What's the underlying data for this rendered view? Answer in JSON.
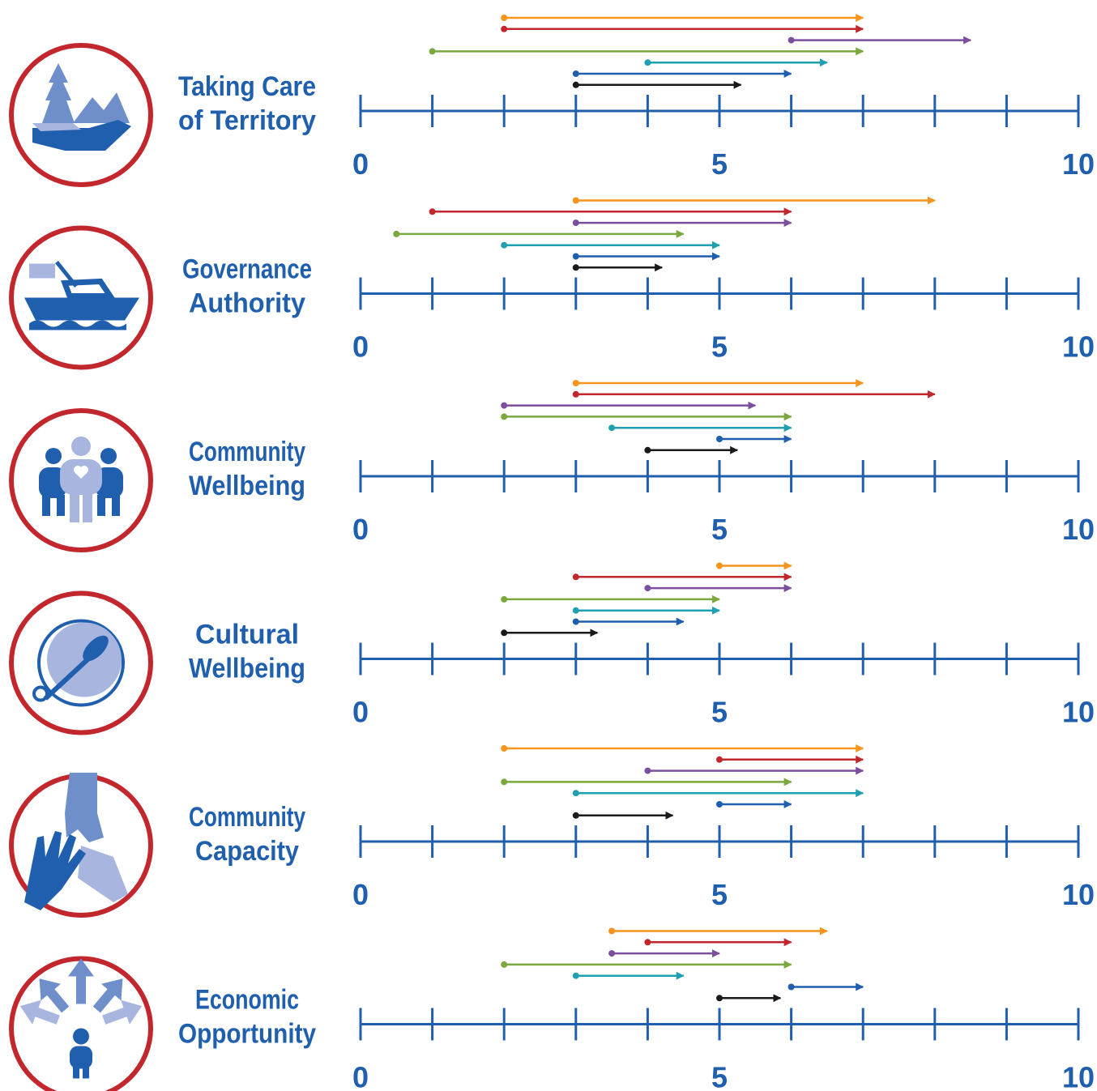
{
  "series_colors": {
    "orange": "#f7941d",
    "red": "#c1272d",
    "purple": "#7b4f9d",
    "green": "#7aa83f",
    "teal": "#1fa0b0",
    "blue": "#1f5fad",
    "black": "#1a1a1a"
  },
  "axis_color": "#1f5fad",
  "icon_ring_color": "#c1272d",
  "chart_data": [
    {
      "type": "range",
      "label_lines": [
        "Taking Care",
        "of Territory"
      ],
      "icon": "hands-holding-land-icon",
      "xlim": [
        0,
        10
      ],
      "tick_labels": [
        "0",
        "5",
        "10"
      ],
      "tick_label_values": [
        0,
        5,
        10
      ],
      "ranges": [
        {
          "color": "orange",
          "start": 2,
          "end": 7
        },
        {
          "color": "red",
          "start": 2,
          "end": 7
        },
        {
          "color": "purple",
          "start": 6,
          "end": 8.5
        },
        {
          "color": "green",
          "start": 1,
          "end": 7
        },
        {
          "color": "teal",
          "start": 4,
          "end": 6.5
        },
        {
          "color": "blue",
          "start": 3,
          "end": 6
        },
        {
          "color": "black",
          "start": 3,
          "end": 5.3
        }
      ]
    },
    {
      "type": "range",
      "label_lines": [
        "Governance",
        "Authority"
      ],
      "icon": "boat-with-flag-icon",
      "xlim": [
        0,
        10
      ],
      "tick_labels": [
        "0",
        "5",
        "10"
      ],
      "tick_label_values": [
        0,
        5,
        10
      ],
      "ranges": [
        {
          "color": "orange",
          "start": 3,
          "end": 8
        },
        {
          "color": "red",
          "start": 1,
          "end": 6
        },
        {
          "color": "purple",
          "start": 3,
          "end": 6
        },
        {
          "color": "green",
          "start": 0.5,
          "end": 4.5
        },
        {
          "color": "teal",
          "start": 2,
          "end": 5
        },
        {
          "color": "blue",
          "start": 3,
          "end": 5
        },
        {
          "color": "black",
          "start": 3,
          "end": 4.2
        }
      ]
    },
    {
      "type": "range",
      "label_lines": [
        "Community",
        "Wellbeing"
      ],
      "icon": "family-heart-icon",
      "xlim": [
        0,
        10
      ],
      "tick_labels": [
        "0",
        "5",
        "10"
      ],
      "tick_label_values": [
        0,
        5,
        10
      ],
      "ranges": [
        {
          "color": "orange",
          "start": 3,
          "end": 7
        },
        {
          "color": "red",
          "start": 3,
          "end": 8
        },
        {
          "color": "purple",
          "start": 2,
          "end": 5.5
        },
        {
          "color": "green",
          "start": 2,
          "end": 6
        },
        {
          "color": "teal",
          "start": 3.5,
          "end": 6
        },
        {
          "color": "blue",
          "start": 5,
          "end": 6
        },
        {
          "color": "black",
          "start": 4,
          "end": 5.25
        }
      ]
    },
    {
      "type": "range",
      "label_lines": [
        "Cultural",
        "Wellbeing"
      ],
      "icon": "drum-icon",
      "xlim": [
        0,
        10
      ],
      "tick_labels": [
        "0",
        "5",
        "10"
      ],
      "tick_label_values": [
        0,
        5,
        10
      ],
      "ranges": [
        {
          "color": "orange",
          "start": 5,
          "end": 6
        },
        {
          "color": "red",
          "start": 3,
          "end": 6
        },
        {
          "color": "purple",
          "start": 4,
          "end": 6
        },
        {
          "color": "green",
          "start": 2,
          "end": 5
        },
        {
          "color": "teal",
          "start": 3,
          "end": 5
        },
        {
          "color": "blue",
          "start": 3,
          "end": 4.5
        },
        {
          "color": "black",
          "start": 2,
          "end": 3.3
        }
      ]
    },
    {
      "type": "range",
      "label_lines": [
        "Community",
        "Capacity"
      ],
      "icon": "helping-hands-icon",
      "xlim": [
        0,
        10
      ],
      "tick_labels": [
        "0",
        "5",
        "10"
      ],
      "tick_label_values": [
        0,
        5,
        10
      ],
      "ranges": [
        {
          "color": "orange",
          "start": 2,
          "end": 7
        },
        {
          "color": "red",
          "start": 5,
          "end": 7
        },
        {
          "color": "purple",
          "start": 4,
          "end": 7
        },
        {
          "color": "green",
          "start": 2,
          "end": 6
        },
        {
          "color": "teal",
          "start": 3,
          "end": 7
        },
        {
          "color": "blue",
          "start": 5,
          "end": 6
        },
        {
          "color": "black",
          "start": 3,
          "end": 4.35
        }
      ]
    },
    {
      "type": "range",
      "label_lines": [
        "Economic",
        "Opportunity"
      ],
      "icon": "person-arrows-icon",
      "xlim": [
        0,
        10
      ],
      "tick_labels": [
        "0",
        "5",
        "10"
      ],
      "tick_label_values": [
        0,
        5,
        10
      ],
      "ranges": [
        {
          "color": "orange",
          "start": 3.5,
          "end": 6.5
        },
        {
          "color": "red",
          "start": 4,
          "end": 6
        },
        {
          "color": "purple",
          "start": 3.5,
          "end": 5
        },
        {
          "color": "green",
          "start": 2,
          "end": 6
        },
        {
          "color": "teal",
          "start": 3,
          "end": 4.5
        },
        {
          "color": "blue",
          "start": 6,
          "end": 7
        },
        {
          "color": "black",
          "start": 5,
          "end": 5.85
        }
      ]
    }
  ]
}
